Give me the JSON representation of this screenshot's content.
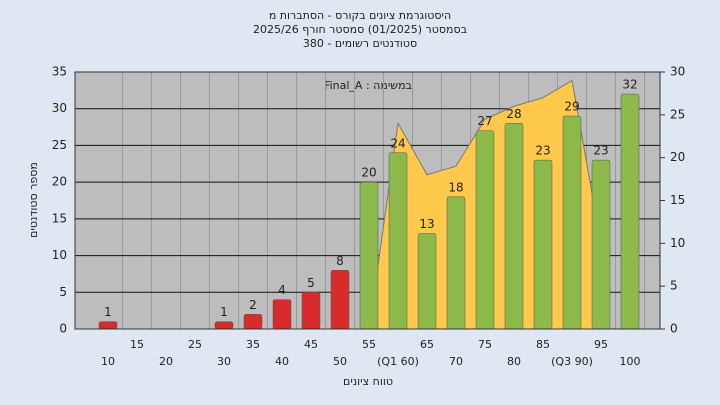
{
  "chart_data": {
    "type": "bar",
    "title": [
      "היסטוגרמת ציונים בקורס - הסתברות מ",
      "בסמסטר (01/2025) סמסטר חורף 2025/26",
      "סטודנטים רשומים - 380"
    ],
    "annotation": "במשימה : Final_A",
    "x_label": "טווח ציונים",
    "y_label": "מספר סטודנטים",
    "categories": [
      "10",
      "15",
      "20",
      "25",
      "30",
      "35",
      "40",
      "45",
      "50",
      "55",
      "(Q1 60)",
      "65",
      "70",
      "75",
      "80",
      "85",
      "(Q3 90)",
      "95",
      "100"
    ],
    "values": [
      1,
      0,
      0,
      0,
      1,
      2,
      4,
      5,
      8,
      20,
      24,
      13,
      18,
      27,
      28,
      23,
      29,
      23,
      32
    ],
    "colors": [
      "#d92b2b",
      "#d92b2b",
      "#d92b2b",
      "#d92b2b",
      "#d92b2b",
      "#d92b2b",
      "#d92b2b",
      "#d92b2b",
      "#d92b2b",
      "#8db84a",
      "#8db84a",
      "#8db84a",
      "#8db84a",
      "#8db84a",
      "#8db84a",
      "#8db84a",
      "#8db84a",
      "#8db84a",
      "#8db84a"
    ],
    "area": {
      "type": "area",
      "axis": "y2",
      "color": "#ffc94d",
      "values": [
        null,
        null,
        null,
        null,
        null,
        null,
        null,
        null,
        null,
        0,
        24,
        18,
        19,
        24.5,
        26,
        27,
        29,
        10,
        null
      ]
    },
    "ylim": [
      0,
      35
    ],
    "yticks": [
      0,
      5,
      10,
      15,
      20,
      25,
      30,
      35
    ],
    "y2lim": [
      0,
      30
    ],
    "y2ticks": [
      0,
      5,
      10,
      15,
      20,
      25,
      30
    ],
    "grid": true
  }
}
